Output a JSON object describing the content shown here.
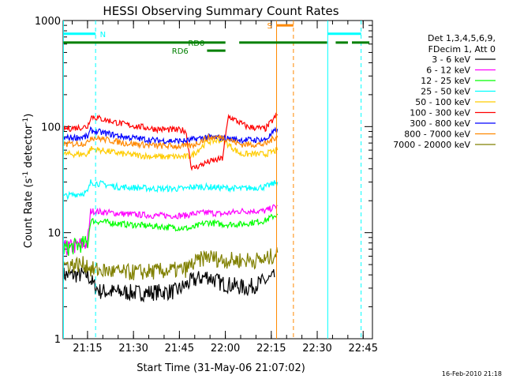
{
  "chart_data": {
    "type": "line",
    "title": "HESSI Observing Summary Count Rates",
    "xlabel": "Start Time (31-May-06 21:07:02)",
    "ylabel_main": "Count Rate (s",
    "ylabel_sup1": "-1",
    "ylabel_mid": " detector",
    "ylabel_sup2": "-1",
    "ylabel_end": ")",
    "y_scale": "log",
    "ylim": [
      1,
      1000
    ],
    "y_ticks": [
      {
        "value": 1,
        "label": "1"
      },
      {
        "value": 10,
        "label": "10"
      },
      {
        "value": 100,
        "label": "100"
      },
      {
        "value": 1000,
        "label": "1000"
      }
    ],
    "xlim_minutes": [
      0,
      101
    ],
    "x_ticks": [
      {
        "value": 7.97,
        "label": "21:15"
      },
      {
        "value": 22.97,
        "label": "21:30"
      },
      {
        "value": 37.97,
        "label": "21:45"
      },
      {
        "value": 52.97,
        "label": "22:00"
      },
      {
        "value": 67.97,
        "label": "22:15"
      },
      {
        "value": 82.97,
        "label": "22:30"
      },
      {
        "value": 97.97,
        "label": "22:45"
      }
    ],
    "legend_position": "top-right",
    "legend_header": [
      "Det 1,3,4,5,6,9,",
      "FDecim 1, Att 0"
    ],
    "series": [
      {
        "name": "3 - 6 keV",
        "color": "#000000",
        "points": [
          [
            0,
            4
          ],
          [
            8,
            4
          ],
          [
            10,
            3.2
          ],
          [
            12,
            2.8
          ],
          [
            25,
            2.7
          ],
          [
            37,
            2.8
          ],
          [
            42,
            3.5
          ],
          [
            47,
            3.9
          ],
          [
            52,
            3.3
          ],
          [
            55,
            3.2
          ],
          [
            60,
            3
          ],
          [
            66,
            3.5
          ],
          [
            69,
            3.8
          ]
        ]
      },
      {
        "name": "6 - 12 keV",
        "color": "#ff00ff",
        "points": [
          [
            0,
            7
          ],
          [
            8,
            8
          ],
          [
            9,
            16
          ],
          [
            20,
            15
          ],
          [
            30,
            14.5
          ],
          [
            40,
            14.5
          ],
          [
            42,
            15
          ],
          [
            47,
            15.5
          ],
          [
            52,
            15
          ],
          [
            58,
            16
          ],
          [
            66,
            16
          ],
          [
            70,
            18
          ]
        ]
      },
      {
        "name": "12 - 25 keV",
        "color": "#00ff00",
        "points": [
          [
            0,
            7
          ],
          [
            8,
            8
          ],
          [
            9,
            13
          ],
          [
            20,
            12
          ],
          [
            30,
            11.5
          ],
          [
            40,
            11
          ],
          [
            42,
            11
          ],
          [
            47,
            12.5
          ],
          [
            52,
            12
          ],
          [
            58,
            12
          ],
          [
            66,
            13
          ],
          [
            70,
            15
          ]
        ]
      },
      {
        "name": "25 - 50 keV",
        "color": "#00ffff",
        "points": [
          [
            0,
            22
          ],
          [
            8,
            24
          ],
          [
            9,
            30
          ],
          [
            18,
            27
          ],
          [
            30,
            26
          ],
          [
            40,
            26
          ],
          [
            42,
            27
          ],
          [
            47,
            27
          ],
          [
            52,
            26.5
          ],
          [
            58,
            26
          ],
          [
            66,
            27
          ],
          [
            70,
            30
          ]
        ]
      },
      {
        "name": "50 - 100 keV",
        "color": "#ffcc00",
        "points": [
          [
            0,
            55
          ],
          [
            8,
            55
          ],
          [
            9,
            62
          ],
          [
            20,
            55
          ],
          [
            30,
            52
          ],
          [
            40,
            52
          ],
          [
            42,
            53
          ],
          [
            47,
            72
          ],
          [
            52,
            75
          ],
          [
            58,
            55
          ],
          [
            66,
            55
          ],
          [
            70,
            60
          ]
        ]
      },
      {
        "name": "100 - 300 keV",
        "color": "#ff0000",
        "points": [
          [
            0,
            95
          ],
          [
            8,
            100
          ],
          [
            9,
            125
          ],
          [
            20,
            105
          ],
          [
            30,
            95
          ],
          [
            40,
            92
          ],
          [
            42,
            40
          ],
          [
            47,
            46
          ],
          [
            52,
            50
          ],
          [
            54,
            125
          ],
          [
            60,
            100
          ],
          [
            66,
            95
          ],
          [
            70,
            130
          ]
        ]
      },
      {
        "name": "300 - 800 keV",
        "color": "#0000ff",
        "points": [
          [
            0,
            78
          ],
          [
            8,
            80
          ],
          [
            9,
            92
          ],
          [
            20,
            80
          ],
          [
            30,
            74
          ],
          [
            40,
            73
          ],
          [
            42,
            75
          ],
          [
            47,
            80
          ],
          [
            52,
            78
          ],
          [
            58,
            75
          ],
          [
            66,
            75
          ],
          [
            70,
            95
          ]
        ]
      },
      {
        "name": "800 - 7000 keV",
        "color": "#ff8800",
        "points": [
          [
            0,
            68
          ],
          [
            8,
            70
          ],
          [
            9,
            80
          ],
          [
            20,
            70
          ],
          [
            30,
            66
          ],
          [
            40,
            65
          ],
          [
            42,
            66
          ],
          [
            47,
            78
          ],
          [
            52,
            80
          ],
          [
            58,
            68
          ],
          [
            66,
            68
          ],
          [
            70,
            82
          ]
        ]
      },
      {
        "name": "7000 - 20000 keV",
        "color": "#808000",
        "points": [
          [
            0,
            5
          ],
          [
            8,
            5
          ],
          [
            9,
            4.5
          ],
          [
            20,
            4.2
          ],
          [
            30,
            4.3
          ],
          [
            40,
            4.5
          ],
          [
            42,
            5
          ],
          [
            47,
            6
          ],
          [
            52,
            5.5
          ],
          [
            58,
            5.5
          ],
          [
            66,
            5.5
          ],
          [
            70,
            6.5
          ]
        ]
      }
    ],
    "vlines": [
      {
        "x": 0.1,
        "color": "#00ffff",
        "style": "solid"
      },
      {
        "x": 10.6,
        "color": "#00ffff",
        "style": "dashed"
      },
      {
        "x": 69.7,
        "color": "#ff8800",
        "style": "solid"
      },
      {
        "x": 75.2,
        "color": "#ff8800",
        "style": "dashed"
      },
      {
        "x": 86.4,
        "color": "#00ffff",
        "style": "solid"
      },
      {
        "x": 97.3,
        "color": "#00ffff",
        "style": "dashed"
      }
    ],
    "annotations": [
      {
        "label": "N",
        "color": "#00ffff",
        "value": 750,
        "segments": [
          [
            0.1,
            10.6
          ],
          [
            86.4,
            97.3
          ]
        ],
        "text_x": 12
      },
      {
        "label": "S",
        "color": "#ff8800",
        "value": 900,
        "segments": [
          [
            69.7,
            75.2
          ]
        ],
        "text_x": 66.6
      },
      {
        "label": "RD0",
        "color": "#008000",
        "value": 620,
        "segments": [
          [
            0.1,
            53
          ],
          [
            57.5,
            86.2
          ],
          [
            89,
            93
          ],
          [
            94.3,
            100
          ]
        ],
        "text_x": 40.8
      },
      {
        "label": "RD6",
        "color": "#008000",
        "value": 520,
        "segments": [
          [
            47,
            53
          ]
        ],
        "text_x": 35.5
      }
    ],
    "footer_timestamp": "16-Feb-2010 21:18"
  }
}
